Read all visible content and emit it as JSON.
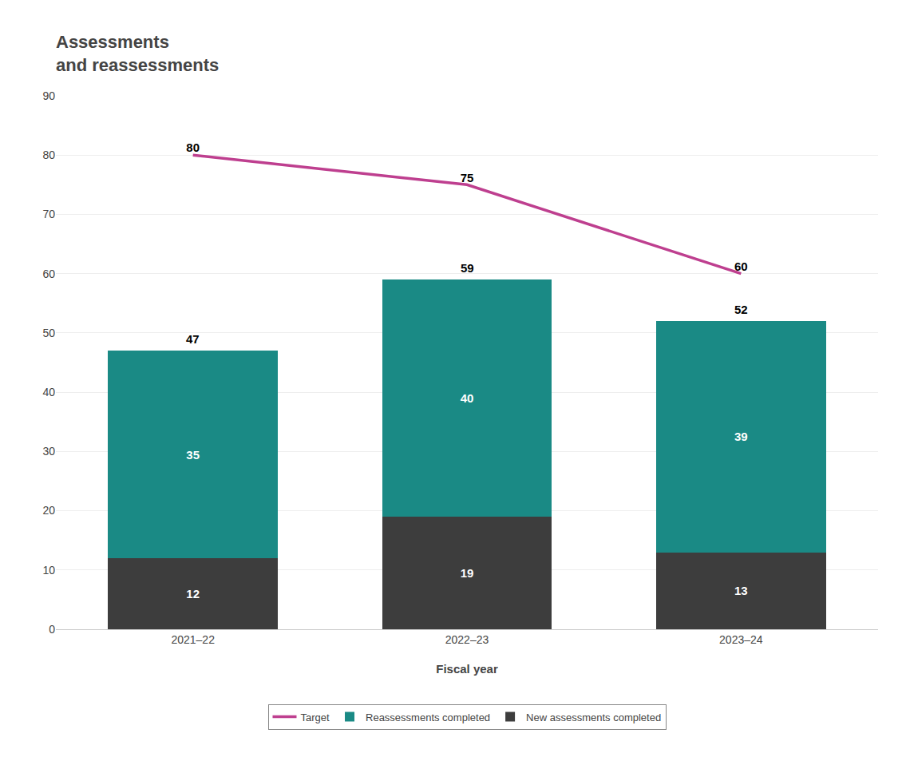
{
  "chart_data": {
    "type": "bar",
    "stacked": true,
    "title": "Assessments\nand reassessments",
    "xlabel": "Fiscal year",
    "categories": [
      "2021–22",
      "2022–23",
      "2023–24"
    ],
    "series": [
      {
        "name": "New assessments completed",
        "type": "bar",
        "color": "#3d3d3d",
        "values": [
          12,
          19,
          13
        ]
      },
      {
        "name": "Reassessments completed",
        "type": "bar",
        "color": "#1a8a85",
        "values": [
          35,
          40,
          39
        ]
      },
      {
        "name": "Target",
        "type": "line",
        "color": "#be3f8f",
        "values": [
          80,
          75,
          60
        ]
      }
    ],
    "totals": [
      47,
      59,
      52
    ],
    "ylim": [
      0,
      90
    ],
    "yticks": [
      0,
      10,
      20,
      30,
      40,
      50,
      60,
      70,
      80,
      90
    ],
    "grid": true,
    "legend": "bottom",
    "data_labels": true
  }
}
